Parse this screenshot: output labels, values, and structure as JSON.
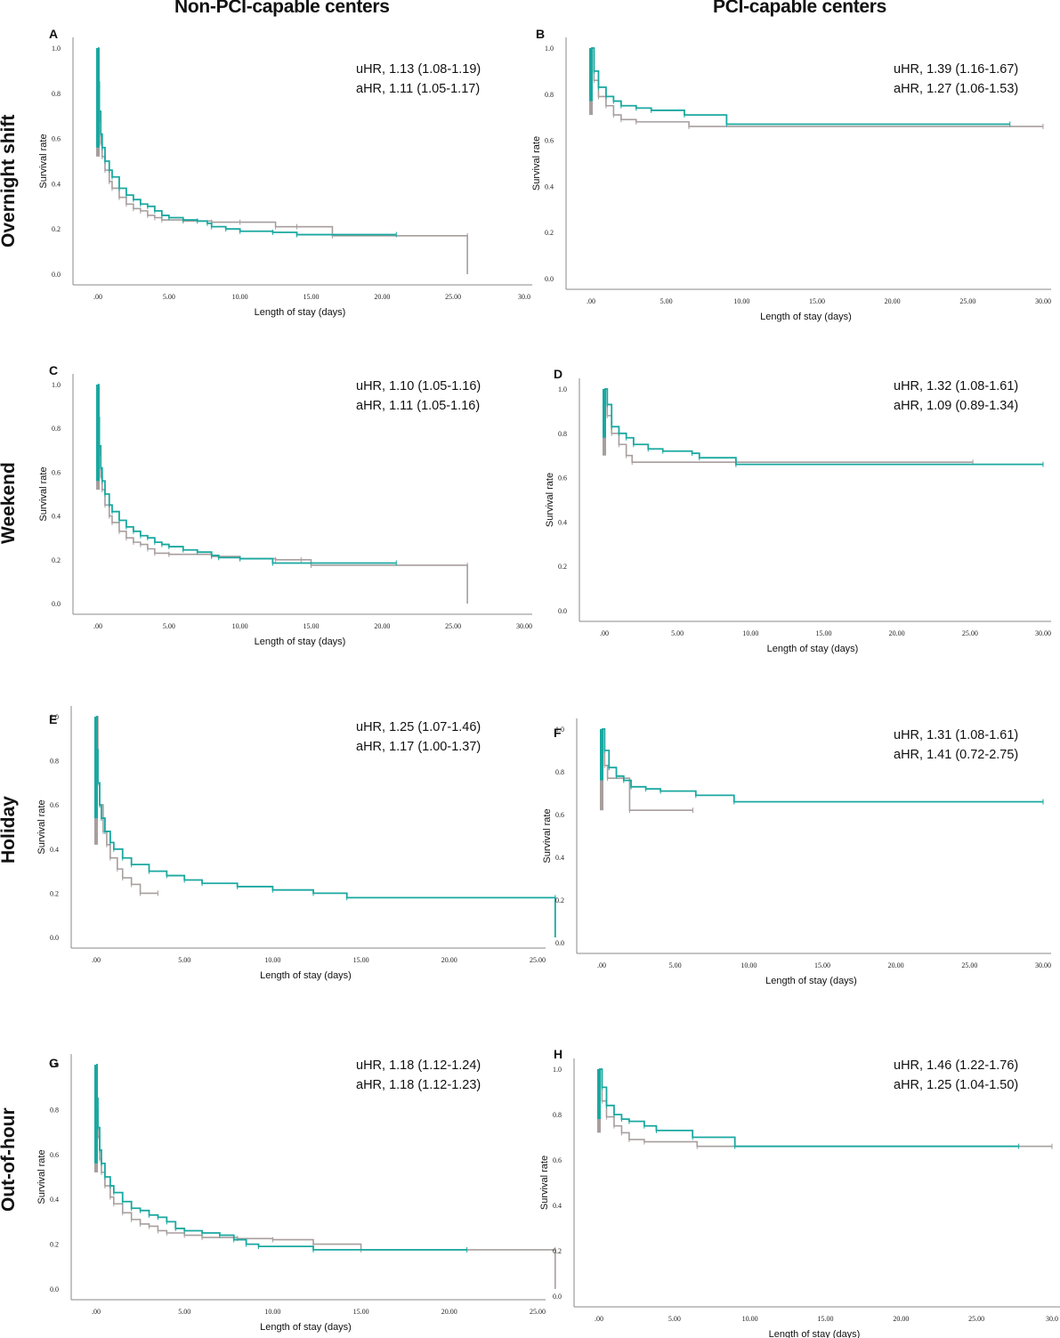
{
  "column_headers": [
    "Non-PCI-capable centers",
    "PCI-capable centers"
  ],
  "row_headers": [
    "Overnight shift",
    "Weekend",
    "Holiday",
    "Out-of-hour"
  ],
  "colors": {
    "teal": "#1aa8a0",
    "gray": "#a89e9e"
  },
  "chart_data": [
    {
      "panel": "A",
      "type": "line",
      "subtype": "kaplan-meier",
      "column": "Non-PCI-capable centers",
      "row": "Overnight shift",
      "annotation": [
        "uHR, 1.13 (1.08-1.19)",
        "aHR, 1.11 (1.05-1.17)"
      ],
      "xlabel": "Length of stay (days)",
      "ylabel": "Survival rate",
      "xlim": [
        0,
        30
      ],
      "ylim": [
        0,
        1.0
      ],
      "xticks": [
        ".00",
        "5.00",
        "10.00",
        "15.00",
        "20.00",
        "25.00",
        "30.0"
      ],
      "yticks": [
        "0.0",
        "0.2",
        "0.4",
        "0.6",
        "0.8",
        "1.0"
      ],
      "series": [
        {
          "name": "teal",
          "color": "#1aa8a0",
          "x": [
            0,
            0.05,
            0.1,
            0.2,
            0.3,
            0.5,
            0.8,
            1.0,
            1.5,
            2.0,
            2.5,
            3.0,
            3.5,
            4.0,
            4.5,
            5.0,
            6.0,
            7.0,
            7.7,
            8.0,
            9.0,
            10.0,
            12.3,
            14.0,
            21.0
          ],
          "y": [
            1.0,
            0.85,
            0.72,
            0.62,
            0.56,
            0.5,
            0.46,
            0.43,
            0.38,
            0.35,
            0.33,
            0.31,
            0.3,
            0.28,
            0.26,
            0.25,
            0.24,
            0.235,
            0.225,
            0.21,
            0.2,
            0.19,
            0.185,
            0.175,
            0.175
          ]
        },
        {
          "name": "gray",
          "color": "#a89e9e",
          "x": [
            0,
            0.05,
            0.1,
            0.2,
            0.3,
            0.5,
            0.8,
            1.0,
            1.5,
            2.0,
            2.5,
            3.0,
            3.5,
            4.0,
            4.5,
            6.0,
            8.0,
            10.0,
            12.5,
            14.0,
            16.5,
            26.0,
            26.0
          ],
          "y": [
            1.0,
            0.8,
            0.68,
            0.58,
            0.52,
            0.46,
            0.41,
            0.38,
            0.34,
            0.31,
            0.29,
            0.28,
            0.26,
            0.25,
            0.24,
            0.235,
            0.23,
            0.23,
            0.21,
            0.21,
            0.17,
            0.17,
            0.0
          ]
        }
      ]
    },
    {
      "panel": "B",
      "type": "line",
      "subtype": "kaplan-meier",
      "column": "PCI-capable centers",
      "row": "Overnight shift",
      "annotation": [
        "uHR, 1.39 (1.16-1.67)",
        "aHR, 1.27 (1.06-1.53)"
      ],
      "xlabel": "Length of stay (days)",
      "ylabel": "Survival rate",
      "xlim": [
        0,
        30
      ],
      "ylim": [
        0,
        1.0
      ],
      "xticks": [
        ".00",
        "5.00",
        "10.00",
        "15.00",
        "20.00",
        "25.00",
        "30.00"
      ],
      "yticks": [
        "0.0",
        "0.2",
        "0.4",
        "0.6",
        "0.8",
        "1.0"
      ],
      "series": [
        {
          "name": "teal",
          "color": "#1aa8a0",
          "x": [
            0,
            0.2,
            0.5,
            1.0,
            1.5,
            2.0,
            3.0,
            4.0,
            6.2,
            9.0,
            27.8
          ],
          "y": [
            1.0,
            0.9,
            0.83,
            0.79,
            0.77,
            0.75,
            0.74,
            0.73,
            0.71,
            0.67,
            0.67
          ]
        },
        {
          "name": "gray",
          "color": "#a89e9e",
          "x": [
            0,
            0.2,
            0.5,
            1.0,
            1.5,
            2.0,
            3.0,
            6.5,
            30.0
          ],
          "y": [
            1.0,
            0.86,
            0.79,
            0.75,
            0.71,
            0.69,
            0.68,
            0.66,
            0.66
          ]
        }
      ]
    },
    {
      "panel": "C",
      "type": "line",
      "subtype": "kaplan-meier",
      "column": "Non-PCI-capable centers",
      "row": "Weekend",
      "annotation": [
        "uHR, 1.10 (1.05-1.16)",
        "aHR, 1.11 (1.05-1.16)"
      ],
      "xlabel": "Length of stay (days)",
      "ylabel": "Survival rate",
      "xlim": [
        0,
        30
      ],
      "ylim": [
        0,
        1.0
      ],
      "xticks": [
        ".00",
        "5.00",
        "10.00",
        "15.00",
        "20.00",
        "25.00",
        "30.00"
      ],
      "yticks": [
        "0.0",
        "0.2",
        "0.4",
        "0.6",
        "0.8",
        "1.0"
      ],
      "series": [
        {
          "name": "teal",
          "color": "#1aa8a0",
          "x": [
            0,
            0.05,
            0.1,
            0.2,
            0.3,
            0.5,
            0.8,
            1.0,
            1.5,
            2.0,
            2.5,
            3.0,
            3.5,
            4.0,
            4.5,
            5.0,
            6.0,
            7.0,
            8.0,
            8.5,
            10.0,
            12.3,
            21.0
          ],
          "y": [
            1.0,
            0.85,
            0.72,
            0.62,
            0.56,
            0.5,
            0.45,
            0.42,
            0.38,
            0.35,
            0.33,
            0.31,
            0.3,
            0.28,
            0.27,
            0.26,
            0.245,
            0.235,
            0.22,
            0.21,
            0.205,
            0.185,
            0.185
          ]
        },
        {
          "name": "gray",
          "color": "#a89e9e",
          "x": [
            0,
            0.05,
            0.1,
            0.2,
            0.3,
            0.5,
            0.8,
            1.0,
            1.5,
            2.0,
            2.5,
            3.0,
            3.5,
            4.0,
            5.0,
            8.0,
            10.0,
            12.5,
            14.3,
            15.0,
            26.0,
            26.0
          ],
          "y": [
            1.0,
            0.8,
            0.68,
            0.58,
            0.52,
            0.45,
            0.4,
            0.37,
            0.33,
            0.3,
            0.28,
            0.27,
            0.25,
            0.23,
            0.225,
            0.215,
            0.205,
            0.2,
            0.2,
            0.175,
            0.175,
            0.0
          ]
        }
      ]
    },
    {
      "panel": "D",
      "type": "line",
      "subtype": "kaplan-meier",
      "column": "PCI-capable centers",
      "row": "Weekend",
      "annotation": [
        "uHR, 1.32 (1.08-1.61)",
        "aHR, 1.09 (0.89-1.34)"
      ],
      "xlabel": "Length of stay (days)",
      "ylabel": "Survival rate",
      "xlim": [
        0,
        30
      ],
      "ylim": [
        0,
        1.0
      ],
      "xticks": [
        ".00",
        "5.00",
        "10.00",
        "15.00",
        "20.00",
        "25.00",
        "30.00"
      ],
      "yticks": [
        "0.0",
        "0.2",
        "0.4",
        "0.6",
        "0.8",
        "1.0"
      ],
      "series": [
        {
          "name": "teal",
          "color": "#1aa8a0",
          "x": [
            0,
            0.2,
            0.5,
            1.0,
            1.5,
            2.0,
            3.0,
            4.0,
            6.0,
            6.5,
            9.0,
            30.0
          ],
          "y": [
            1.0,
            0.93,
            0.83,
            0.8,
            0.78,
            0.75,
            0.73,
            0.72,
            0.71,
            0.69,
            0.66,
            0.66
          ]
        },
        {
          "name": "gray",
          "color": "#a89e9e",
          "x": [
            0,
            0.2,
            0.5,
            1.0,
            1.5,
            1.9,
            25.2
          ],
          "y": [
            1.0,
            0.88,
            0.8,
            0.75,
            0.7,
            0.67,
            0.67
          ]
        }
      ]
    },
    {
      "panel": "E",
      "type": "line",
      "subtype": "kaplan-meier",
      "column": "Non-PCI-capable centers",
      "row": "Holiday",
      "annotation": [
        "uHR, 1.25 (1.07-1.46)",
        "aHR, 1.17 (1.00-1.37)"
      ],
      "xlabel": "Length of stay (days)",
      "ylabel": "Survival rate",
      "xlim": [
        0,
        28
      ],
      "ylim": [
        0,
        1.0
      ],
      "xticks": [
        ".00",
        "5.00",
        "10.00",
        "15.00",
        "20.00",
        "25.00"
      ],
      "yticks": [
        "0.0",
        "0.2",
        "0.4",
        "0.6",
        "0.8",
        "1.0"
      ],
      "series": [
        {
          "name": "teal",
          "color": "#1aa8a0",
          "x": [
            0,
            0.05,
            0.1,
            0.2,
            0.3,
            0.5,
            0.8,
            1.0,
            1.5,
            2.0,
            3.0,
            4.0,
            5.0,
            6.0,
            8.0,
            10.0,
            12.3,
            14.2,
            26.0,
            26.0
          ],
          "y": [
            1.0,
            0.85,
            0.7,
            0.6,
            0.54,
            0.48,
            0.43,
            0.4,
            0.36,
            0.33,
            0.3,
            0.28,
            0.26,
            0.245,
            0.23,
            0.215,
            0.2,
            0.18,
            0.18,
            0.0
          ]
        },
        {
          "name": "gray",
          "color": "#a89e9e",
          "x": [
            0,
            0.1,
            0.2,
            0.4,
            0.6,
            0.8,
            1.2,
            1.5,
            2.0,
            2.5,
            3.5
          ],
          "y": [
            1.0,
            0.7,
            0.6,
            0.48,
            0.42,
            0.36,
            0.31,
            0.27,
            0.24,
            0.2,
            0.2
          ]
        }
      ]
    },
    {
      "panel": "F",
      "type": "line",
      "subtype": "kaplan-meier",
      "column": "PCI-capable centers",
      "row": "Holiday",
      "annotation": [
        "uHR, 1.31 (1.08-1.61)",
        "aHR, 1.41 (0.72-2.75)"
      ],
      "xlabel": "Length of stay (days)",
      "ylabel": "Survival rate",
      "xlim": [
        0,
        30
      ],
      "ylim": [
        0,
        1.0
      ],
      "xticks": [
        ".00",
        "5.00",
        "10.00",
        "15.00",
        "20.00",
        "25.00",
        "30.00"
      ],
      "yticks": [
        "0.0",
        "0.2",
        "0.4",
        "0.6",
        "0.8",
        "1.0"
      ],
      "series": [
        {
          "name": "teal",
          "color": "#1aa8a0",
          "x": [
            0,
            0.2,
            0.5,
            1.0,
            1.5,
            2.0,
            3.0,
            4.0,
            6.4,
            9.0,
            30.0
          ],
          "y": [
            1.0,
            0.9,
            0.82,
            0.78,
            0.76,
            0.73,
            0.72,
            0.71,
            0.69,
            0.66,
            0.66
          ]
        },
        {
          "name": "gray",
          "color": "#a89e9e",
          "x": [
            0,
            0.2,
            0.4,
            1.9,
            6.2
          ],
          "y": [
            1.0,
            0.83,
            0.77,
            0.62,
            0.62
          ]
        }
      ]
    },
    {
      "panel": "G",
      "type": "line",
      "subtype": "kaplan-meier",
      "column": "Non-PCI-capable centers",
      "row": "Out-of-hour",
      "annotation": [
        "uHR, 1.18 (1.12-1.24)",
        "aHR, 1.18 (1.12-1.23)"
      ],
      "xlabel": "Length of stay (days)",
      "ylabel": "Survival rate",
      "xlim": [
        0,
        28
      ],
      "ylim": [
        0,
        1.0
      ],
      "xticks": [
        ".00",
        "5.00",
        "10.00",
        "15.00",
        "20.00",
        "25.00"
      ],
      "yticks": [
        "0.0",
        "0.2",
        "0.4",
        "0.6",
        "0.8",
        "1.0"
      ],
      "series": [
        {
          "name": "teal",
          "color": "#1aa8a0",
          "x": [
            0,
            0.05,
            0.1,
            0.2,
            0.3,
            0.5,
            0.8,
            1.0,
            1.5,
            2.0,
            2.5,
            3.0,
            3.5,
            4.0,
            4.5,
            5.0,
            6.0,
            7.0,
            7.8,
            8.5,
            9.2,
            12.3,
            21.0
          ],
          "y": [
            1.0,
            0.85,
            0.72,
            0.62,
            0.56,
            0.5,
            0.46,
            0.43,
            0.39,
            0.36,
            0.35,
            0.33,
            0.32,
            0.3,
            0.27,
            0.26,
            0.25,
            0.24,
            0.22,
            0.2,
            0.19,
            0.175,
            0.175
          ]
        },
        {
          "name": "gray",
          "color": "#a89e9e",
          "x": [
            0,
            0.05,
            0.1,
            0.2,
            0.3,
            0.5,
            0.8,
            1.0,
            1.5,
            2.0,
            2.5,
            3.0,
            3.5,
            4.0,
            5.0,
            6.0,
            8.0,
            10.0,
            12.3,
            15.0,
            26.0,
            26.0
          ],
          "y": [
            1.0,
            0.8,
            0.68,
            0.58,
            0.52,
            0.46,
            0.41,
            0.38,
            0.34,
            0.31,
            0.29,
            0.28,
            0.26,
            0.25,
            0.24,
            0.23,
            0.225,
            0.22,
            0.2,
            0.175,
            0.175,
            0.0
          ]
        }
      ]
    },
    {
      "panel": "H",
      "type": "line",
      "subtype": "kaplan-meier",
      "column": "PCI-capable centers",
      "row": "Out-of-hour",
      "annotation": [
        "uHR, 1.46 (1.22-1.76)",
        "aHR, 1.25 (1.04-1.50)"
      ],
      "xlabel": "Length of stay (days)",
      "ylabel": "Survival rate",
      "xlim": [
        0,
        30
      ],
      "ylim": [
        0,
        1.0
      ],
      "xticks": [
        ".00",
        "5.00",
        "10.00",
        "15.00",
        "20.00",
        "25.00",
        "30.0"
      ],
      "yticks": [
        "0.0",
        "0.2",
        "0.4",
        "0.6",
        "0.8",
        "1.0"
      ],
      "series": [
        {
          "name": "teal",
          "color": "#1aa8a0",
          "x": [
            0,
            0.2,
            0.5,
            1.0,
            1.5,
            2.0,
            3.0,
            3.8,
            6.2,
            9.0,
            27.8
          ],
          "y": [
            1.0,
            0.92,
            0.84,
            0.8,
            0.78,
            0.77,
            0.75,
            0.73,
            0.7,
            0.66,
            0.66
          ]
        },
        {
          "name": "gray",
          "color": "#a89e9e",
          "x": [
            0,
            0.2,
            0.5,
            1.0,
            1.5,
            2.0,
            3.0,
            6.5,
            30.0
          ],
          "y": [
            1.0,
            0.86,
            0.79,
            0.75,
            0.72,
            0.69,
            0.68,
            0.66,
            0.66
          ]
        }
      ]
    }
  ]
}
